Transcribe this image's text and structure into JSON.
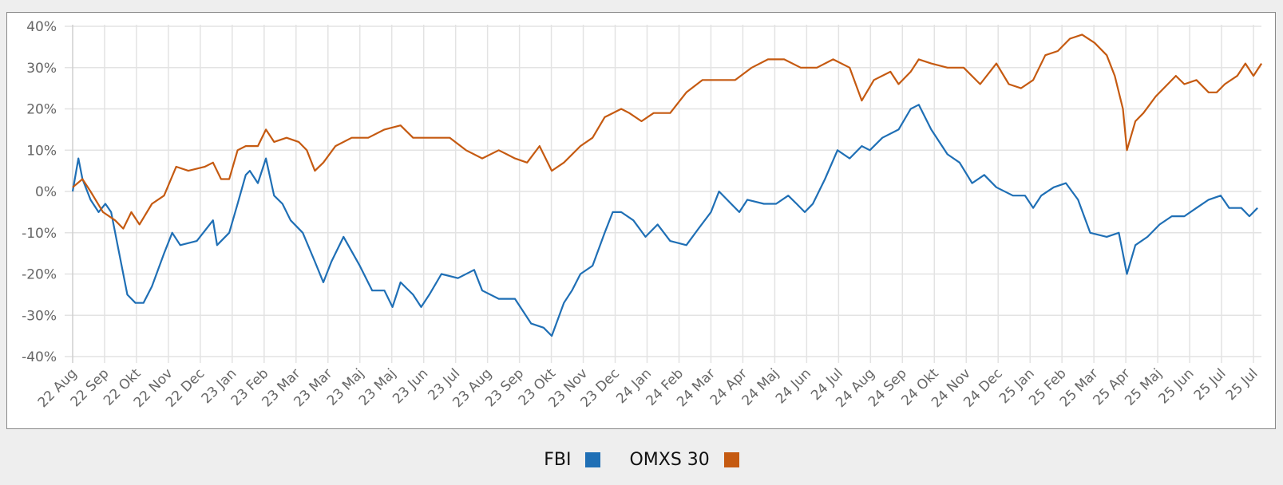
{
  "chart_data": {
    "type": "line",
    "title": "",
    "xlabel": "",
    "ylabel": "",
    "ylim": [
      -40,
      40
    ],
    "yticks": [
      40,
      30,
      20,
      10,
      0,
      -10,
      -20,
      -30,
      -40
    ],
    "ytick_labels": [
      "40%",
      "30%",
      "20%",
      "10%",
      "0%",
      "-10%",
      "-20%",
      "-30%",
      "-40%"
    ],
    "x_unit": "months since 22 Aug",
    "xlim": [
      0,
      35
    ],
    "xtick_labels": [
      "22 Aug",
      "22 Sep",
      "22 Okt",
      "22 Nov",
      "22 Dec",
      "23 Jan",
      "23 Feb",
      "23 Mar",
      "23 Mar",
      "23 Maj",
      "23 Maj",
      "23 Jun",
      "23 Jul",
      "23 Aug",
      "23 Sep",
      "23 Okt",
      "23 Nov",
      "23 Dec",
      "24 Jan",
      "24 Feb",
      "24 Mar",
      "24 Apr",
      "24 Maj",
      "24 Jun",
      "24 Jul",
      "24 Aug",
      "24 Sep",
      "24 Okt",
      "24 Nov",
      "24 Dec",
      "25 Jan",
      "25 Feb",
      "25 Mar",
      "25 Apr",
      "25 Maj",
      "25 Jun",
      "25 Jul",
      "25 Jul"
    ],
    "grid": true,
    "legend_position": "bottom",
    "series": [
      {
        "name": "FBI",
        "color": "#1f6fb5",
        "points": [
          [
            0,
            0
          ],
          [
            0.17,
            8
          ],
          [
            0.29,
            3
          ],
          [
            0.53,
            -2
          ],
          [
            0.77,
            -5
          ],
          [
            0.97,
            -3
          ],
          [
            1.14,
            -5
          ],
          [
            1.38,
            -15
          ],
          [
            1.62,
            -25
          ],
          [
            1.86,
            -27
          ],
          [
            2.1,
            -27
          ],
          [
            2.35,
            -23
          ],
          [
            2.71,
            -15
          ],
          [
            2.95,
            -10
          ],
          [
            3.19,
            -13
          ],
          [
            3.68,
            -12
          ],
          [
            4.16,
            -7
          ],
          [
            4.28,
            -13
          ],
          [
            4.64,
            -10
          ],
          [
            4.89,
            -3
          ],
          [
            5.13,
            4
          ],
          [
            5.25,
            5
          ],
          [
            5.49,
            2
          ],
          [
            5.73,
            8
          ],
          [
            5.97,
            -1
          ],
          [
            6.22,
            -3
          ],
          [
            6.46,
            -7
          ],
          [
            6.82,
            -10
          ],
          [
            7.18,
            -17
          ],
          [
            7.43,
            -22
          ],
          [
            7.67,
            -17
          ],
          [
            8.03,
            -11
          ],
          [
            8.51,
            -18
          ],
          [
            8.88,
            -24
          ],
          [
            9.24,
            -24
          ],
          [
            9.48,
            -28
          ],
          [
            9.72,
            -22
          ],
          [
            10.09,
            -25
          ],
          [
            10.33,
            -28
          ],
          [
            10.57,
            -25
          ],
          [
            10.93,
            -20
          ],
          [
            11.42,
            -21
          ],
          [
            11.9,
            -19
          ],
          [
            12.14,
            -24
          ],
          [
            12.63,
            -26
          ],
          [
            13.11,
            -26
          ],
          [
            13.59,
            -32
          ],
          [
            13.96,
            -33
          ],
          [
            14.2,
            -35
          ],
          [
            14.56,
            -27
          ],
          [
            14.8,
            -24
          ],
          [
            15.05,
            -20
          ],
          [
            15.41,
            -18
          ],
          [
            15.77,
            -10
          ],
          [
            16.01,
            -5
          ],
          [
            16.26,
            -5
          ],
          [
            16.62,
            -7
          ],
          [
            16.98,
            -11
          ],
          [
            17.34,
            -8
          ],
          [
            17.71,
            -12
          ],
          [
            18.19,
            -13
          ],
          [
            18.55,
            -9
          ],
          [
            18.92,
            -5
          ],
          [
            19.16,
            0
          ],
          [
            19.4,
            -2
          ],
          [
            19.76,
            -5
          ],
          [
            20,
            -2
          ],
          [
            20.49,
            -3
          ],
          [
            20.85,
            -3
          ],
          [
            21.21,
            -1
          ],
          [
            21.46,
            -3
          ],
          [
            21.7,
            -5
          ],
          [
            21.94,
            -3
          ],
          [
            22.3,
            3
          ],
          [
            22.67,
            10
          ],
          [
            23.03,
            8
          ],
          [
            23.39,
            11
          ],
          [
            23.63,
            10
          ],
          [
            24,
            13
          ],
          [
            24.48,
            15
          ],
          [
            24.84,
            20
          ],
          [
            25.08,
            21
          ],
          [
            25.45,
            15
          ],
          [
            25.93,
            9
          ],
          [
            26.29,
            7
          ],
          [
            26.66,
            2
          ],
          [
            27.02,
            4
          ],
          [
            27.38,
            1
          ],
          [
            27.87,
            -1
          ],
          [
            28.23,
            -1
          ],
          [
            28.47,
            -4
          ],
          [
            28.71,
            -1
          ],
          [
            29.08,
            1
          ],
          [
            29.44,
            2
          ],
          [
            29.8,
            -2
          ],
          [
            30.16,
            -10
          ],
          [
            30.65,
            -11
          ],
          [
            31.01,
            -10
          ],
          [
            31.25,
            -20
          ],
          [
            31.5,
            -13
          ],
          [
            31.86,
            -11
          ],
          [
            32.22,
            -8
          ],
          [
            32.58,
            -6
          ],
          [
            32.95,
            -6
          ],
          [
            33.31,
            -4
          ],
          [
            33.67,
            -2
          ],
          [
            34.03,
            -1
          ],
          [
            34.28,
            -4
          ],
          [
            34.64,
            -4
          ],
          [
            34.88,
            -6
          ],
          [
            35.12,
            -4
          ]
        ]
      },
      {
        "name": "OMXS 30",
        "color": "#c55a11",
        "points": [
          [
            0,
            1
          ],
          [
            0.29,
            3
          ],
          [
            0.53,
            0
          ],
          [
            0.9,
            -5
          ],
          [
            1.26,
            -7
          ],
          [
            1.5,
            -9
          ],
          [
            1.74,
            -5
          ],
          [
            1.98,
            -8
          ],
          [
            2.35,
            -3
          ],
          [
            2.71,
            -1
          ],
          [
            3.07,
            6
          ],
          [
            3.43,
            5
          ],
          [
            3.92,
            6
          ],
          [
            4.16,
            7
          ],
          [
            4.4,
            3
          ],
          [
            4.64,
            3
          ],
          [
            4.89,
            10
          ],
          [
            5.13,
            11
          ],
          [
            5.49,
            11
          ],
          [
            5.73,
            15
          ],
          [
            5.97,
            12
          ],
          [
            6.34,
            13
          ],
          [
            6.7,
            12
          ],
          [
            6.94,
            10
          ],
          [
            7.18,
            5
          ],
          [
            7.43,
            7
          ],
          [
            7.79,
            11
          ],
          [
            8.27,
            13
          ],
          [
            8.76,
            13
          ],
          [
            9.24,
            15
          ],
          [
            9.72,
            16
          ],
          [
            10.09,
            13
          ],
          [
            10.69,
            13
          ],
          [
            11.18,
            13
          ],
          [
            11.66,
            10
          ],
          [
            12.14,
            8
          ],
          [
            12.63,
            10
          ],
          [
            13.11,
            8
          ],
          [
            13.47,
            7
          ],
          [
            13.84,
            11
          ],
          [
            14.2,
            5
          ],
          [
            14.56,
            7
          ],
          [
            15.05,
            11
          ],
          [
            15.41,
            13
          ],
          [
            15.77,
            18
          ],
          [
            16.26,
            20
          ],
          [
            16.5,
            19
          ],
          [
            16.86,
            17
          ],
          [
            17.22,
            19
          ],
          [
            17.71,
            19
          ],
          [
            18.19,
            24
          ],
          [
            18.67,
            27
          ],
          [
            19.16,
            27
          ],
          [
            19.64,
            27
          ],
          [
            20.13,
            30
          ],
          [
            20.61,
            32
          ],
          [
            21.09,
            32
          ],
          [
            21.58,
            30
          ],
          [
            22.06,
            30
          ],
          [
            22.54,
            32
          ],
          [
            23.03,
            30
          ],
          [
            23.39,
            22
          ],
          [
            23.75,
            27
          ],
          [
            24.24,
            29
          ],
          [
            24.48,
            26
          ],
          [
            24.84,
            29
          ],
          [
            25.08,
            32
          ],
          [
            25.45,
            31
          ],
          [
            25.93,
            30
          ],
          [
            26.41,
            30
          ],
          [
            26.9,
            26
          ],
          [
            27.38,
            31
          ],
          [
            27.75,
            26
          ],
          [
            28.11,
            25
          ],
          [
            28.47,
            27
          ],
          [
            28.83,
            33
          ],
          [
            29.2,
            34
          ],
          [
            29.56,
            37
          ],
          [
            29.92,
            38
          ],
          [
            30.29,
            36
          ],
          [
            30.65,
            33
          ],
          [
            30.89,
            28
          ],
          [
            31.13,
            20
          ],
          [
            31.25,
            10
          ],
          [
            31.5,
            17
          ],
          [
            31.74,
            19
          ],
          [
            32.1,
            23
          ],
          [
            32.46,
            26
          ],
          [
            32.7,
            28
          ],
          [
            32.95,
            26
          ],
          [
            33.31,
            27
          ],
          [
            33.67,
            24
          ],
          [
            33.91,
            24
          ],
          [
            34.15,
            26
          ],
          [
            34.52,
            28
          ],
          [
            34.76,
            31
          ],
          [
            35,
            28
          ],
          [
            35.24,
            31
          ]
        ]
      }
    ]
  }
}
